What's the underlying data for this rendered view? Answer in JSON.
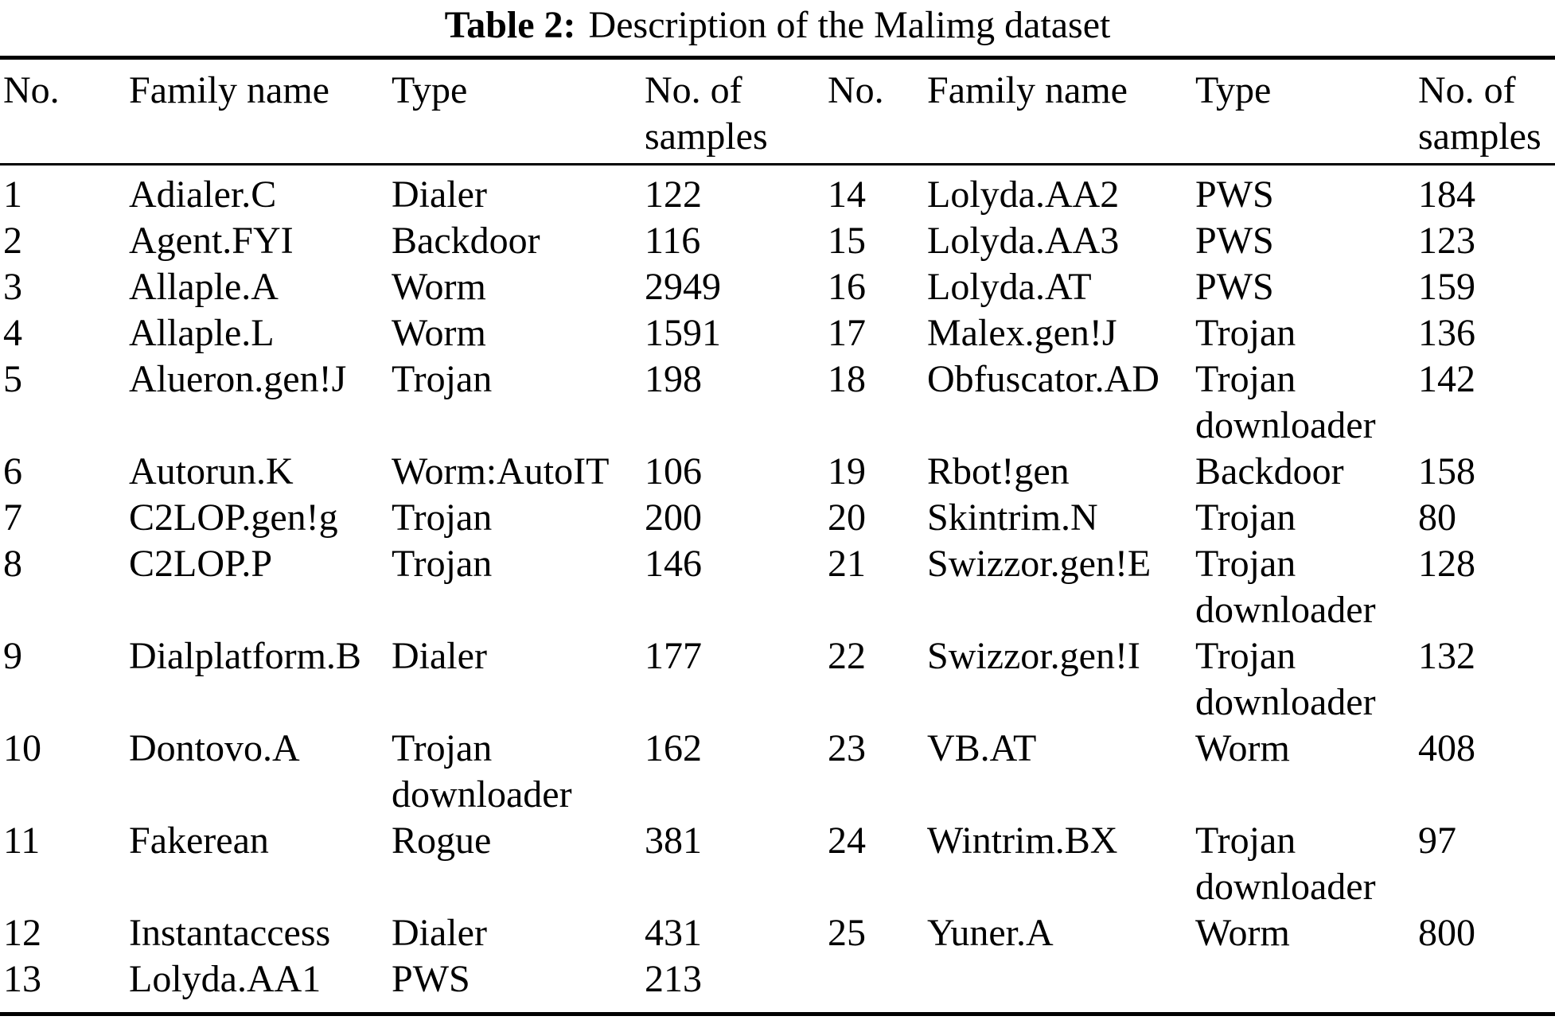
{
  "page": {
    "background": "#ffffff",
    "text_color": "#000000",
    "rule_color": "#000000"
  },
  "title": {
    "tag": "Table 2:",
    "caption": "Description of the Malimg dataset"
  },
  "table": {
    "column_headers": [
      "No.",
      "Family name",
      "Type",
      "No. of samples"
    ],
    "rows": [
      {
        "left": {
          "no": "1",
          "family": "Adialer.C",
          "type": "Dialer",
          "samples": "122"
        },
        "right": {
          "no": "14",
          "family": "Lolyda.AA2",
          "type": "PWS",
          "samples": "184"
        }
      },
      {
        "left": {
          "no": "2",
          "family": "Agent.FYI",
          "type": "Backdoor",
          "samples": "116"
        },
        "right": {
          "no": "15",
          "family": "Lolyda.AA3",
          "type": "PWS",
          "samples": "123"
        }
      },
      {
        "left": {
          "no": "3",
          "family": "Allaple.A",
          "type": "Worm",
          "samples": "2949"
        },
        "right": {
          "no": "16",
          "family": "Lolyda.AT",
          "type": "PWS",
          "samples": "159"
        }
      },
      {
        "left": {
          "no": "4",
          "family": "Allaple.L",
          "type": "Worm",
          "samples": "1591"
        },
        "right": {
          "no": "17",
          "family": "Malex.gen!J",
          "type": "Trojan",
          "samples": "136"
        }
      },
      {
        "left": {
          "no": "5",
          "family": "Alueron.gen!J",
          "type": "Trojan",
          "samples": "198"
        },
        "right": {
          "no": "18",
          "family": "Obfuscator.AD",
          "type": "Trojan downloader",
          "samples": "142"
        }
      },
      {
        "left": {
          "no": "6",
          "family": "Autorun.K",
          "type": "Worm:AutoIT",
          "samples": "106"
        },
        "right": {
          "no": "19",
          "family": "Rbot!gen",
          "type": "Backdoor",
          "samples": "158"
        }
      },
      {
        "left": {
          "no": "7",
          "family": "C2LOP.gen!g",
          "type": "Trojan",
          "samples": "200"
        },
        "right": {
          "no": "20",
          "family": "Skintrim.N",
          "type": "Trojan",
          "samples": "80"
        }
      },
      {
        "left": {
          "no": "8",
          "family": "C2LOP.P",
          "type": "Trojan",
          "samples": "146"
        },
        "right": {
          "no": "21",
          "family": "Swizzor.gen!E",
          "type": "Trojan downloader",
          "samples": "128"
        }
      },
      {
        "left": {
          "no": "9",
          "family": "Dialplatform.B",
          "type": "Dialer",
          "samples": "177"
        },
        "right": {
          "no": "22",
          "family": "Swizzor.gen!I",
          "type": "Trojan downloader",
          "samples": "132"
        }
      },
      {
        "left": {
          "no": "10",
          "family": "Dontovo.A",
          "type": "Trojan downloader",
          "samples": "162"
        },
        "right": {
          "no": "23",
          "family": "VB.AT",
          "type": "Worm",
          "samples": "408"
        }
      },
      {
        "left": {
          "no": "11",
          "family": "Fakerean",
          "type": "Rogue",
          "samples": "381"
        },
        "right": {
          "no": "24",
          "family": "Wintrim.BX",
          "type": "Trojan downloader",
          "samples": "97"
        }
      },
      {
        "left": {
          "no": "12",
          "family": "Instantaccess",
          "type": "Dialer",
          "samples": "431"
        },
        "right": {
          "no": "25",
          "family": "Yuner.A",
          "type": "Worm",
          "samples": "800"
        }
      },
      {
        "left": {
          "no": "13",
          "family": "Lolyda.AA1",
          "type": "PWS",
          "samples": "213"
        },
        "right": null
      }
    ]
  }
}
